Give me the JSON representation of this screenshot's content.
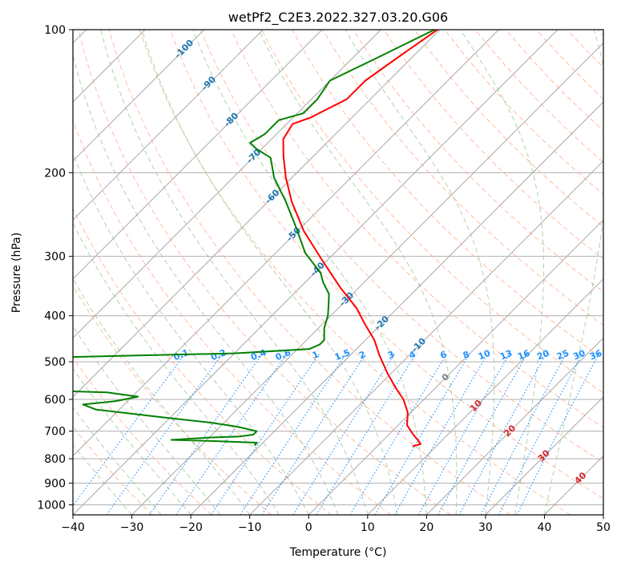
{
  "chart_data": {
    "type": "line",
    "title": "wetPf2_C2E3.2022.327.03.20.G06",
    "xlabel": "Temperature (°C)",
    "ylabel": "Pressure (hPa)",
    "xlim": [
      -40,
      50
    ],
    "ylim": [
      1050,
      100
    ],
    "y_scale": "log",
    "grid": true,
    "x_ticks": [
      -40,
      -30,
      -20,
      -10,
      0,
      10,
      20,
      30,
      40,
      50
    ],
    "y_ticks": [
      100,
      200,
      300,
      400,
      500,
      600,
      700,
      800,
      900,
      1000
    ],
    "colors": {
      "temperature": "#ff0000",
      "dewpoint": "#008000",
      "isotherm_labels": "#1f77b4",
      "dry_adiabat": "#ffa07a",
      "moist_adiabat": "#8fbc8f",
      "mixing_ratio": "#1e90ff",
      "warm_labels": "#d62728",
      "zero_label": "#808080"
    },
    "isotherm_labels": [
      {
        "value": -100,
        "text": "-100",
        "p": 110
      },
      {
        "value": -90,
        "text": "-90",
        "p": 130
      },
      {
        "value": -80,
        "text": "-80",
        "p": 155
      },
      {
        "value": -70,
        "text": "-70",
        "p": 185
      },
      {
        "value": -60,
        "text": "-60",
        "p": 225
      },
      {
        "value": -50,
        "text": "-50",
        "p": 270
      },
      {
        "value": -40,
        "text": "-40",
        "p": 320
      },
      {
        "value": -30,
        "text": "-30",
        "p": 370
      },
      {
        "value": -20,
        "text": "-20",
        "p": 415
      },
      {
        "value": -10,
        "text": "-10",
        "p": 462
      },
      {
        "value": 0,
        "text": "0",
        "p": 540
      },
      {
        "value": 10,
        "text": "10",
        "p": 620
      },
      {
        "value": 20,
        "text": "20",
        "p": 700
      },
      {
        "value": 30,
        "text": "30",
        "p": 790
      },
      {
        "value": 40,
        "text": "40",
        "p": 880
      }
    ],
    "mixing_ratio_labels": [
      {
        "text": "0.1",
        "value": 0.1
      },
      {
        "text": "0.2",
        "value": 0.2
      },
      {
        "text": "0.4",
        "value": 0.4
      },
      {
        "text": "0.6",
        "value": 0.6
      },
      {
        "text": "1",
        "value": 1
      },
      {
        "text": "1.5",
        "value": 1.5
      },
      {
        "text": "2",
        "value": 2
      },
      {
        "text": "3",
        "value": 3
      },
      {
        "text": "4",
        "value": 4
      },
      {
        "text": "6",
        "value": 6
      },
      {
        "text": "8",
        "value": 8
      },
      {
        "text": "10",
        "value": 10
      },
      {
        "text": "13",
        "value": 13
      },
      {
        "text": "16",
        "value": 16
      },
      {
        "text": "20",
        "value": 20
      },
      {
        "text": "25",
        "value": 25
      },
      {
        "text": "30",
        "value": 30
      },
      {
        "text": "36",
        "value": 36
      }
    ],
    "series": [
      {
        "key": "temperature",
        "points": [
          [
            -60.4,
            100
          ],
          [
            -62.5,
            115
          ],
          [
            -64,
            128
          ],
          [
            -64,
            140
          ],
          [
            -67,
            153
          ],
          [
            -69,
            158
          ],
          [
            -68,
            170
          ],
          [
            -65,
            185
          ],
          [
            -61,
            205
          ],
          [
            -56,
            230
          ],
          [
            -49,
            265
          ],
          [
            -41,
            305
          ],
          [
            -33,
            350
          ],
          [
            -27,
            385
          ],
          [
            -23,
            415
          ],
          [
            -18.5,
            450
          ],
          [
            -15,
            485
          ],
          [
            -10.5,
            530
          ],
          [
            -6.5,
            570
          ],
          [
            -3.5,
            600
          ],
          [
            -0.5,
            640
          ],
          [
            1.5,
            680
          ],
          [
            4,
            710
          ],
          [
            6.2,
            735
          ],
          [
            7,
            745
          ],
          [
            6,
            753
          ]
        ]
      },
      {
        "key": "dewpoint",
        "points": [
          [
            -60.9,
            100
          ],
          [
            -66,
            115
          ],
          [
            -70,
            128
          ],
          [
            -69,
            140
          ],
          [
            -69,
            150
          ],
          [
            -72,
            155
          ],
          [
            -72,
            166
          ],
          [
            -73,
            173
          ],
          [
            -71,
            178
          ],
          [
            -67,
            186
          ],
          [
            -63,
            205
          ],
          [
            -57,
            230
          ],
          [
            -51,
            260
          ],
          [
            -45,
            295
          ],
          [
            -39,
            325
          ],
          [
            -37,
            340
          ],
          [
            -34,
            360
          ],
          [
            -32,
            382
          ],
          [
            -30.5,
            400
          ],
          [
            -29,
            425
          ],
          [
            -27,
            450
          ],
          [
            -27,
            460
          ],
          [
            -28,
            470
          ],
          [
            -40,
            480
          ],
          [
            -78,
            492
          ],
          [
            -87.5,
            505
          ],
          [
            -85,
            510
          ],
          [
            -72,
            520
          ],
          [
            -70,
            532
          ],
          [
            -78,
            543
          ],
          [
            -81,
            558
          ],
          [
            -79,
            568
          ],
          [
            -55,
            580
          ],
          [
            -49,
            592
          ],
          [
            -52,
            605
          ],
          [
            -57,
            615
          ],
          [
            -54,
            630
          ],
          [
            -41,
            655
          ],
          [
            -32,
            672
          ],
          [
            -27,
            685
          ],
          [
            -23,
            700
          ],
          [
            -23,
            712
          ],
          [
            -25,
            718
          ],
          [
            -30,
            722
          ],
          [
            -36,
            730
          ],
          [
            -29,
            734
          ],
          [
            -21,
            740
          ],
          [
            -21,
            750
          ]
        ]
      }
    ]
  }
}
